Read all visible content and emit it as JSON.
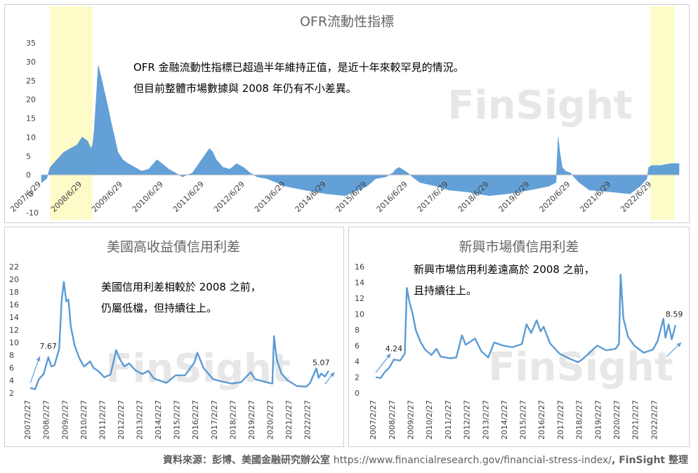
{
  "colors": {
    "series": "#5b9bd5",
    "highlight": "#fdfbc8",
    "zero_line": "#bfbfbf",
    "text": "#404040"
  },
  "watermark": "FinSight",
  "source": {
    "prefix": "資料來源：彭博、美國金融研究辦公室 ",
    "url": "https://www.financialresearch.gov/financial-stress-index/",
    "suffix": ", FinSight 整理"
  },
  "chart_data": [
    {
      "type": "area",
      "title": "OFR流動性指標",
      "x_type": "date",
      "xlim": [
        "2007-06-29",
        "2023-02-28"
      ],
      "ylim": [
        -10,
        35
      ],
      "y_ticks": [
        -10,
        -5,
        0,
        5,
        10,
        15,
        20,
        25,
        30,
        35
      ],
      "x_tick_labels": [
        "2007/6/29",
        "2008/6/29",
        "2009/6/29",
        "2010/6/29",
        "2011/6/29",
        "2012/6/29",
        "2013/6/29",
        "2014/6/29",
        "2015/6/29",
        "2016/6/29",
        "2017/6/29",
        "2018/6/29",
        "2019/6/29",
        "2020/6/29",
        "2021/6/29",
        "2022/6/29"
      ],
      "highlight_ranges": [
        [
          "2007-09-15",
          "2008-09-29"
        ],
        [
          "2022-06-15",
          "2023-01-20"
        ]
      ],
      "annotations": [
        "OFR 金融流動性指標已超過半年維持正值，是近十年來較罕見的情況。",
        "但目前整體市場數據與 2008 年仍有不小差異。"
      ],
      "x": [
        "2007-06-29",
        "2007-08-15",
        "2007-09-15",
        "2007-11-15",
        "2008-01-15",
        "2008-03-15",
        "2008-05-15",
        "2008-06-29",
        "2008-08-15",
        "2008-09-15",
        "2008-10-01",
        "2008-10-15",
        "2008-11-01",
        "2008-11-20",
        "2008-12-15",
        "2009-01-15",
        "2009-02-15",
        "2009-03-15",
        "2009-04-15",
        "2009-05-15",
        "2009-06-29",
        "2009-08-15",
        "2009-10-15",
        "2009-12-15",
        "2010-02-15",
        "2010-05-01",
        "2010-06-15",
        "2010-08-15",
        "2010-10-15",
        "2010-12-15",
        "2011-03-15",
        "2011-06-29",
        "2011-08-15",
        "2011-09-15",
        "2011-10-15",
        "2011-12-15",
        "2012-02-15",
        "2012-04-15",
        "2012-06-15",
        "2012-08-15",
        "2012-10-15",
        "2013-01-15",
        "2013-06-29",
        "2013-12-15",
        "2014-06-29",
        "2014-12-15",
        "2015-06-29",
        "2015-09-15",
        "2015-12-15",
        "2016-02-15",
        "2016-03-15",
        "2016-04-15",
        "2016-06-29",
        "2016-10-15",
        "2017-03-15",
        "2017-06-29",
        "2017-12-15",
        "2018-03-15",
        "2018-06-29",
        "2018-12-15",
        "2019-06-29",
        "2019-12-15",
        "2020-02-20",
        "2020-03-10",
        "2020-03-25",
        "2020-04-15",
        "2020-05-15",
        "2020-06-29",
        "2020-09-15",
        "2020-12-15",
        "2021-06-29",
        "2021-12-15",
        "2022-03-15",
        "2022-05-15",
        "2022-06-01",
        "2022-06-29",
        "2022-09-15",
        "2022-12-15",
        "2023-02-28"
      ],
      "values": [
        -2,
        -1,
        2,
        4,
        6,
        7,
        8,
        10,
        9,
        7,
        8,
        12,
        20,
        29,
        26,
        22,
        18,
        14,
        10,
        6,
        4,
        3,
        2,
        1,
        1.5,
        4,
        3,
        1.5,
        0.5,
        -0.5,
        0.5,
        5,
        7,
        6,
        4,
        2,
        1.5,
        3,
        2,
        0.5,
        -0.5,
        -1,
        -3,
        -4,
        -5,
        -5.5,
        -3,
        -1,
        -0.5,
        0.5,
        1.5,
        2,
        0.5,
        -2,
        -3,
        -4,
        -4.5,
        -5,
        -5.5,
        -5,
        -4,
        -3,
        -2,
        10,
        6,
        2,
        1,
        0.5,
        -2,
        -4,
        -4.5,
        -5,
        -3,
        -1,
        2,
        2.5,
        2.5,
        3,
        3
      ]
    },
    {
      "type": "line",
      "title": "美國高收益債信用利差",
      "x_type": "date",
      "xlim": [
        "2007-01-01",
        "2023-06-30"
      ],
      "ylim": [
        2,
        22
      ],
      "y_ticks": [
        2,
        4,
        6,
        8,
        10,
        12,
        14,
        16,
        18,
        20,
        22
      ],
      "x_tick_labels": [
        "2007/2/27",
        "2008/2/27",
        "2009/2/27",
        "2010/2/27",
        "2011/2/27",
        "2012/2/27",
        "2013/2/27",
        "2014/2/27",
        "2015/2/27",
        "2016/2/27",
        "2017/2/27",
        "2018/2/27",
        "2019/2/27",
        "2020/2/27",
        "2021/2/27",
        "2022/2/27"
      ],
      "annotations": [
        "美國信用利差相較於 2008 之前，",
        "仍屬低檔，但持續往上。"
      ],
      "data_labels": [
        {
          "x": "2008-02-15",
          "text": "7.67"
        },
        {
          "x": "2022-10-01",
          "text": "5.07"
        }
      ],
      "x": [
        "2007-02-27",
        "2007-06-01",
        "2007-08-15",
        "2007-11-15",
        "2008-02-15",
        "2008-04-15",
        "2008-06-15",
        "2008-09-15",
        "2008-11-01",
        "2008-12-15",
        "2009-02-01",
        "2009-03-15",
        "2009-05-01",
        "2009-07-15",
        "2009-10-15",
        "2010-01-15",
        "2010-05-15",
        "2010-07-15",
        "2010-10-15",
        "2011-02-15",
        "2011-06-15",
        "2011-08-15",
        "2011-10-04",
        "2011-12-15",
        "2012-03-15",
        "2012-06-15",
        "2012-10-15",
        "2013-02-27",
        "2013-06-25",
        "2013-10-15",
        "2014-06-15",
        "2014-12-15",
        "2015-06-15",
        "2015-12-15",
        "2016-02-11",
        "2016-06-15",
        "2016-12-15",
        "2017-06-15",
        "2017-12-15",
        "2018-06-15",
        "2018-12-24",
        "2019-03-15",
        "2019-06-15",
        "2019-12-15",
        "2020-02-20",
        "2020-03-23",
        "2020-05-15",
        "2020-08-15",
        "2020-12-15",
        "2021-06-15",
        "2021-12-15",
        "2022-03-01",
        "2022-06-30",
        "2022-08-15",
        "2022-10-01",
        "2022-12-15",
        "2023-02-27"
      ],
      "values": [
        2.8,
        2.6,
        4.2,
        5.0,
        7.67,
        6.2,
        6.4,
        9.0,
        16.5,
        19.6,
        16.5,
        16.8,
        12.5,
        9.5,
        7.5,
        6.2,
        7.0,
        6.0,
        5.5,
        4.5,
        4.9,
        6.9,
        8.8,
        7.4,
        6.2,
        6.7,
        5.6,
        5.0,
        5.5,
        4.3,
        3.6,
        4.8,
        4.8,
        6.8,
        8.4,
        5.9,
        4.2,
        3.8,
        3.5,
        3.7,
        5.3,
        4.2,
        4.0,
        3.6,
        3.5,
        11.0,
        7.3,
        5.1,
        4.0,
        3.1,
        3.0,
        3.6,
        5.9,
        4.4,
        5.07,
        4.6,
        5.5
      ]
    },
    {
      "type": "line",
      "title": "新興市場債信用利差",
      "x_type": "date",
      "xlim": [
        "2007-01-01",
        "2023-06-30"
      ],
      "ylim": [
        0,
        16
      ],
      "y_ticks": [
        0,
        2,
        4,
        6,
        8,
        10,
        12,
        14,
        16
      ],
      "x_tick_labels": [
        "2007/2/27",
        "2008/2/27",
        "2009/2/27",
        "2010/2/27",
        "2011/2/27",
        "2012/2/27",
        "2013/2/27",
        "2014/2/27",
        "2015/2/27",
        "2016/2/27",
        "2017/2/27",
        "2018/2/27",
        "2019/2/27",
        "2020/2/27",
        "2021/2/27",
        "2022/2/27"
      ],
      "annotations": [
        "新興市場信用利差遠高於 2008 之前，",
        "且持續往上。"
      ],
      "data_labels": [
        {
          "x": "2008-02-15",
          "text": "4.24"
        },
        {
          "x": "2023-02-01",
          "text": "8.59"
        }
      ],
      "x": [
        "2007-02-27",
        "2007-06-01",
        "2007-08-15",
        "2007-11-15",
        "2008-02-15",
        "2008-06-15",
        "2008-09-15",
        "2008-10-24",
        "2008-12-15",
        "2009-02-15",
        "2009-04-15",
        "2009-07-15",
        "2009-10-15",
        "2010-02-15",
        "2010-05-25",
        "2010-08-15",
        "2011-02-15",
        "2011-06-15",
        "2011-10-04",
        "2011-12-15",
        "2012-06-15",
        "2012-10-15",
        "2013-02-27",
        "2013-06-24",
        "2013-12-15",
        "2014-06-15",
        "2014-12-15",
        "2015-03-15",
        "2015-06-15",
        "2015-09-29",
        "2015-12-15",
        "2016-02-11",
        "2016-06-15",
        "2016-12-15",
        "2017-06-15",
        "2017-12-15",
        "2018-03-15",
        "2018-10-15",
        "2018-12-24",
        "2019-06-15",
        "2019-12-15",
        "2020-02-20",
        "2020-03-23",
        "2020-05-15",
        "2020-08-15",
        "2020-12-15",
        "2021-06-15",
        "2021-12-15",
        "2022-03-15",
        "2022-07-05",
        "2022-08-15",
        "2022-10-15",
        "2022-12-15",
        "2023-02-27"
      ],
      "values": [
        2.0,
        1.9,
        2.6,
        3.2,
        4.24,
        4.1,
        5.0,
        13.3,
        11.5,
        10.0,
        8.0,
        6.5,
        5.5,
        4.8,
        5.6,
        4.6,
        4.4,
        4.5,
        7.3,
        6.1,
        6.9,
        5.3,
        4.5,
        6.4,
        6.0,
        5.8,
        6.2,
        8.7,
        7.6,
        9.2,
        7.8,
        8.4,
        6.3,
        5.0,
        4.4,
        3.9,
        4.3,
        5.6,
        6.0,
        5.4,
        5.6,
        6.2,
        15.0,
        9.5,
        7.1,
        6.0,
        5.1,
        5.5,
        6.6,
        9.4,
        7.0,
        8.7,
        6.8,
        8.59
      ]
    }
  ]
}
